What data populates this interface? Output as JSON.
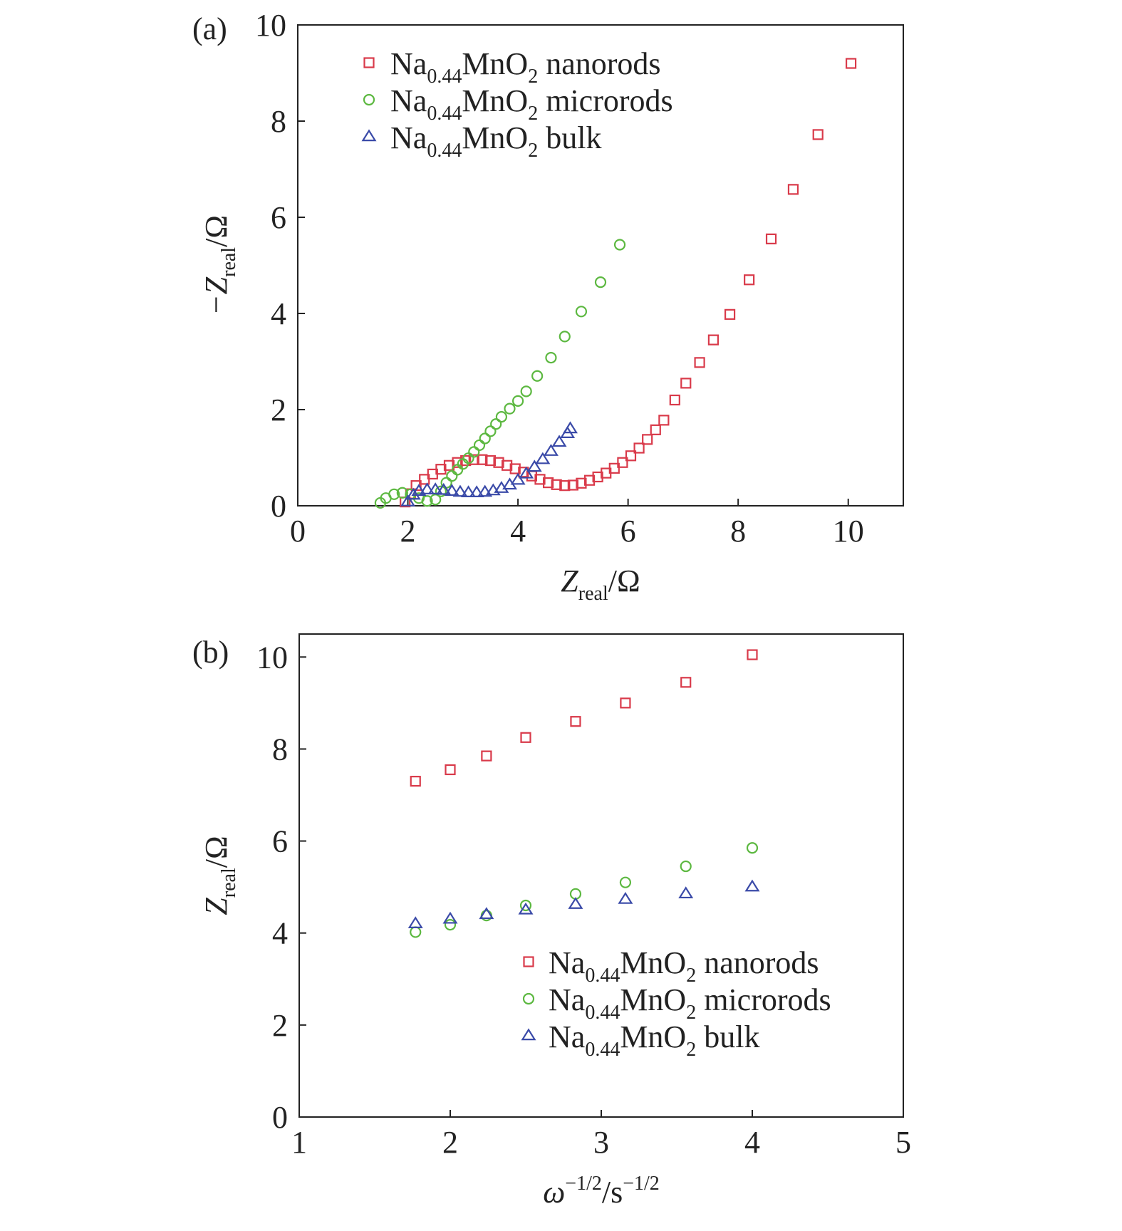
{
  "chart_data": [
    {
      "panel_label": "(a)",
      "type": "scatter",
      "xlabel": {
        "main": "Z",
        "sub": "real",
        "unit": "/Ω"
      },
      "ylabel": {
        "main": "−Z",
        "sub": "real",
        "unit": "/Ω"
      },
      "xlim": [
        0,
        11
      ],
      "ylim": [
        0,
        10
      ],
      "xticks": [
        0,
        2,
        4,
        6,
        8,
        10
      ],
      "yticks": [
        0,
        2,
        4,
        6,
        8,
        10
      ],
      "grid": false,
      "legend": {
        "position": "top-left",
        "entries": [
          {
            "prefix": "Na",
            "sub1": "0.44",
            "mid": "MnO",
            "sub2": "2",
            "suffix": " nanorods"
          },
          {
            "prefix": "Na",
            "sub1": "0.44",
            "mid": "MnO",
            "sub2": "2",
            "suffix": " microrods"
          },
          {
            "prefix": "Na",
            "sub1": "0.44",
            "mid": "MnO",
            "sub2": "2",
            "suffix": " bulk"
          }
        ]
      },
      "series": [
        {
          "marker": "square",
          "color": "#d93a4a",
          "points": [
            [
              1.95,
              0.08
            ],
            [
              2.05,
              0.25
            ],
            [
              2.15,
              0.42
            ],
            [
              2.3,
              0.55
            ],
            [
              2.45,
              0.66
            ],
            [
              2.6,
              0.76
            ],
            [
              2.75,
              0.84
            ],
            [
              2.9,
              0.9
            ],
            [
              3.05,
              0.94
            ],
            [
              3.2,
              0.96
            ],
            [
              3.35,
              0.96
            ],
            [
              3.5,
              0.94
            ],
            [
              3.65,
              0.9
            ],
            [
              3.8,
              0.84
            ],
            [
              3.95,
              0.77
            ],
            [
              4.1,
              0.7
            ],
            [
              4.25,
              0.62
            ],
            [
              4.4,
              0.55
            ],
            [
              4.55,
              0.48
            ],
            [
              4.7,
              0.44
            ],
            [
              4.85,
              0.42
            ],
            [
              5.0,
              0.43
            ],
            [
              5.15,
              0.47
            ],
            [
              5.3,
              0.53
            ],
            [
              5.45,
              0.6
            ],
            [
              5.6,
              0.68
            ],
            [
              5.75,
              0.78
            ],
            [
              5.9,
              0.9
            ],
            [
              6.05,
              1.04
            ],
            [
              6.2,
              1.2
            ],
            [
              6.35,
              1.38
            ],
            [
              6.5,
              1.58
            ],
            [
              6.65,
              1.78
            ],
            [
              6.85,
              2.2
            ],
            [
              7.05,
              2.55
            ],
            [
              7.3,
              2.98
            ],
            [
              7.55,
              3.45
            ],
            [
              7.85,
              3.98
            ],
            [
              8.2,
              4.7
            ],
            [
              8.6,
              5.55
            ],
            [
              9.0,
              6.58
            ],
            [
              9.45,
              7.72
            ],
            [
              10.05,
              9.2
            ]
          ]
        },
        {
          "marker": "circle",
          "color": "#5cb840",
          "points": [
            [
              1.5,
              0.06
            ],
            [
              1.6,
              0.16
            ],
            [
              1.75,
              0.24
            ],
            [
              1.9,
              0.27
            ],
            [
              2.05,
              0.24
            ],
            [
              2.2,
              0.16
            ],
            [
              2.35,
              0.1
            ],
            [
              2.5,
              0.13
            ],
            [
              2.6,
              0.3
            ],
            [
              2.7,
              0.48
            ],
            [
              2.8,
              0.62
            ],
            [
              2.9,
              0.75
            ],
            [
              3.0,
              0.87
            ],
            [
              3.1,
              0.99
            ],
            [
              3.2,
              1.12
            ],
            [
              3.3,
              1.26
            ],
            [
              3.4,
              1.4
            ],
            [
              3.5,
              1.55
            ],
            [
              3.6,
              1.7
            ],
            [
              3.7,
              1.85
            ],
            [
              3.85,
              2.02
            ],
            [
              4.0,
              2.18
            ],
            [
              4.15,
              2.38
            ],
            [
              4.35,
              2.7
            ],
            [
              4.6,
              3.08
            ],
            [
              4.85,
              3.52
            ],
            [
              5.15,
              4.04
            ],
            [
              5.5,
              4.65
            ],
            [
              5.85,
              5.43
            ]
          ]
        },
        {
          "marker": "triangle",
          "color": "#3a4aa8",
          "points": [
            [
              2.0,
              0.08
            ],
            [
              2.1,
              0.22
            ],
            [
              2.2,
              0.3
            ],
            [
              2.35,
              0.33
            ],
            [
              2.5,
              0.33
            ],
            [
              2.65,
              0.32
            ],
            [
              2.8,
              0.3
            ],
            [
              2.95,
              0.28
            ],
            [
              3.1,
              0.27
            ],
            [
              3.25,
              0.27
            ],
            [
              3.4,
              0.28
            ],
            [
              3.55,
              0.31
            ],
            [
              3.7,
              0.36
            ],
            [
              3.85,
              0.43
            ],
            [
              4.0,
              0.53
            ],
            [
              4.15,
              0.66
            ],
            [
              4.3,
              0.8
            ],
            [
              4.45,
              0.96
            ],
            [
              4.6,
              1.13
            ],
            [
              4.75,
              1.32
            ],
            [
              4.9,
              1.5
            ],
            [
              4.95,
              1.6
            ]
          ]
        }
      ]
    },
    {
      "panel_label": "(b)",
      "type": "scatter",
      "xlabel": {
        "main": "ω",
        "sup": "−1/2",
        "unit": "/s",
        "sup2": "−1/2"
      },
      "ylabel": {
        "main": "Z",
        "sub": "real",
        "unit": "/Ω"
      },
      "xlim": [
        1,
        5
      ],
      "ylim": [
        0,
        10.5
      ],
      "xticks": [
        1,
        2,
        3,
        4,
        5
      ],
      "yticks": [
        0,
        2,
        4,
        6,
        8,
        10
      ],
      "grid": false,
      "legend": {
        "position": "bottom-right",
        "entries": [
          {
            "prefix": "Na",
            "sub1": "0.44",
            "mid": "MnO",
            "sub2": "2",
            "suffix": " nanorods"
          },
          {
            "prefix": "Na",
            "sub1": "0.44",
            "mid": "MnO",
            "sub2": "2",
            "suffix": " microrods"
          },
          {
            "prefix": "Na",
            "sub1": "0.44",
            "mid": "MnO",
            "sub2": "2",
            "suffix": " bulk"
          }
        ]
      },
      "series": [
        {
          "marker": "square",
          "color": "#d93a4a",
          "points": [
            [
              1.77,
              7.3
            ],
            [
              2.0,
              7.55
            ],
            [
              2.24,
              7.85
            ],
            [
              2.5,
              8.25
            ],
            [
              2.83,
              8.6
            ],
            [
              3.16,
              9.0
            ],
            [
              3.56,
              9.45
            ],
            [
              4.0,
              10.05
            ]
          ]
        },
        {
          "marker": "circle",
          "color": "#5cb840",
          "points": [
            [
              1.77,
              4.02
            ],
            [
              2.0,
              4.18
            ],
            [
              2.24,
              4.38
            ],
            [
              2.5,
              4.6
            ],
            [
              2.83,
              4.85
            ],
            [
              3.16,
              5.1
            ],
            [
              3.56,
              5.45
            ],
            [
              4.0,
              5.85
            ]
          ]
        },
        {
          "marker": "triangle",
          "color": "#3a4aa8",
          "points": [
            [
              1.77,
              4.2
            ],
            [
              2.0,
              4.3
            ],
            [
              2.24,
              4.4
            ],
            [
              2.5,
              4.5
            ],
            [
              2.83,
              4.62
            ],
            [
              3.16,
              4.73
            ],
            [
              3.56,
              4.85
            ],
            [
              4.0,
              5.0
            ]
          ]
        }
      ]
    }
  ]
}
